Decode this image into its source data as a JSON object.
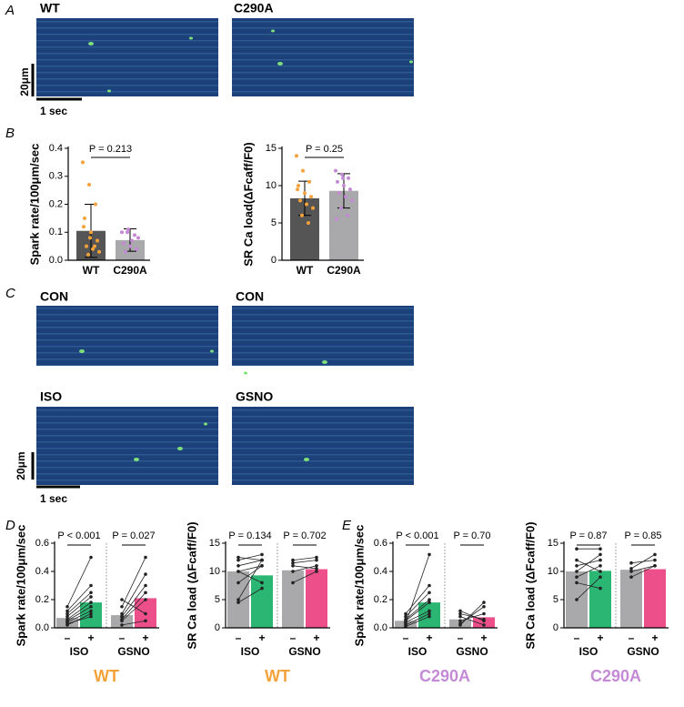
{
  "panel_letters": [
    "A",
    "B",
    "C",
    "D",
    "E"
  ],
  "images": [
    "WT",
    "C290A",
    "CON",
    "CON",
    "ISO",
    "GSNO"
  ],
  "scale_bars": [
    "20μm",
    "1 sec"
  ],
  "chart_data": [
    {
      "type": "bar",
      "ylabel": "Spark rate/100μm/sec",
      "categories": [
        "WT",
        "C290A"
      ],
      "values": [
        0.105,
        0.072
      ],
      "errors": [
        0.095,
        0.04
      ],
      "colors": [
        "#555555",
        "#a9a9ab"
      ],
      "point_colors": [
        "#f5a23a",
        "#c58ad6"
      ],
      "points": [
        [
          0.35,
          0.27,
          0.2,
          0.15,
          0.1,
          0.07,
          0.05,
          0.04,
          0.03,
          0.02,
          0.05,
          0.12,
          0.08
        ],
        [
          0.1,
          0.11,
          0.09,
          0.06,
          0.05,
          0.04,
          0.03,
          0.07,
          0.08,
          0.1
        ]
      ],
      "ylim": [
        0,
        0.4
      ],
      "yticks": [
        {
          "value": 0,
          "label": "0.0"
        },
        0.1,
        0.2,
        0.3,
        0.4
      ],
      "annotation": "P = 0.213"
    },
    {
      "type": "bar",
      "ylabel": "SR Ca load(ΔFcaff/F0)",
      "categories": [
        "WT",
        "C290A"
      ],
      "values": [
        8.3,
        9.3
      ],
      "errors": [
        2.3,
        2.3
      ],
      "colors": [
        "#555555",
        "#a9a9ab"
      ],
      "point_colors": [
        "#f5a23a",
        "#c58ad6"
      ],
      "points": [
        [
          14,
          12,
          10.5,
          10,
          9,
          8.5,
          8,
          7.5,
          7,
          6,
          5,
          9.5
        ],
        [
          12,
          11.5,
          11,
          10.5,
          10,
          9.5,
          9,
          8.5,
          8,
          7,
          6,
          5.5,
          11
        ]
      ],
      "ylim": [
        0,
        15
      ],
      "yticks": [
        0,
        5,
        10,
        15
      ],
      "annotation": "P = 0.25"
    },
    {
      "type": "paired_bar",
      "ylabel": "Spark rate/100μm/sec",
      "groups": [
        "ISO",
        "GSNO"
      ],
      "conditions": [
        "–",
        "+"
      ],
      "values": [
        [
          0.07,
          0.18
        ],
        [
          0.09,
          0.21
        ]
      ],
      "colors": [
        [
          "#a9a9ab",
          "#2bb673"
        ],
        [
          "#a9a9ab",
          "#ec4f8a"
        ]
      ],
      "pairs": [
        [
          [
            0.02,
            0.1
          ],
          [
            0.05,
            0.15
          ],
          [
            0.08,
            0.22
          ],
          [
            0.12,
            0.3
          ],
          [
            0.04,
            0.12
          ],
          [
            0.15,
            0.5
          ],
          [
            0.1,
            0.25
          ],
          [
            0.06,
            0.18
          ],
          [
            0.03,
            0.08
          ]
        ],
        [
          [
            0.05,
            0.2
          ],
          [
            0.1,
            0.38
          ],
          [
            0.2,
            0.1
          ],
          [
            0.08,
            0.3
          ],
          [
            0.02,
            0.05
          ],
          [
            0.15,
            0.5
          ],
          [
            0.06,
            0.25
          ]
        ]
      ],
      "p_values": [
        "P < 0.001",
        "P = 0.027"
      ],
      "genotype": "WT",
      "genotype_color": "#f5a23a",
      "ylim": [
        0,
        0.6
      ],
      "yticks": [
        {
          "value": 0,
          "label": "0.0"
        },
        0.2,
        0.4,
        0.6
      ]
    },
    {
      "type": "paired_bar",
      "ylabel": "SR Ca load (ΔFcaff/F0)",
      "groups": [
        "ISO",
        "GSNO"
      ],
      "conditions": [
        "–",
        "+"
      ],
      "values": [
        [
          10,
          9.3
        ],
        [
          10.2,
          10.4
        ]
      ],
      "colors": [
        [
          "#a9a9ab",
          "#2bb673"
        ],
        [
          "#a9a9ab",
          "#ec4f8a"
        ]
      ],
      "pairs": [
        [
          [
            10,
            11
          ],
          [
            12,
            13
          ],
          [
            8,
            11
          ],
          [
            11,
            12
          ],
          [
            5,
            12
          ],
          [
            4.5,
            7
          ],
          [
            12.5,
            12
          ],
          [
            10,
            8
          ]
        ],
        [
          [
            10,
            11
          ],
          [
            12,
            12.5
          ],
          [
            8,
            10
          ],
          [
            11,
            10.5
          ],
          [
            11.5,
            12
          ]
        ]
      ],
      "p_values": [
        "P = 0.134",
        "P = 0.702"
      ],
      "genotype": "WT",
      "genotype_color": "#f5a23a",
      "ylim": [
        0,
        15
      ],
      "yticks": [
        0,
        5,
        10,
        15
      ]
    },
    {
      "type": "paired_bar",
      "ylabel": "Spark rate/100μm/sec",
      "groups": [
        "ISO",
        "GSNO"
      ],
      "conditions": [
        "–",
        "+"
      ],
      "values": [
        [
          0.05,
          0.18
        ],
        [
          0.06,
          0.075
        ]
      ],
      "colors": [
        [
          "#a9a9ab",
          "#2bb673"
        ],
        [
          "#a9a9ab",
          "#ec4f8a"
        ]
      ],
      "pairs": [
        [
          [
            0.02,
            0.1
          ],
          [
            0.05,
            0.18
          ],
          [
            0.03,
            0.52
          ],
          [
            0.08,
            0.25
          ],
          [
            0.04,
            0.12
          ],
          [
            0.1,
            0.3
          ],
          [
            0.06,
            0.2
          ],
          [
            0.01,
            0.08
          ]
        ],
        [
          [
            0.05,
            0.1
          ],
          [
            0.02,
            0.18
          ],
          [
            0.12,
            0.05
          ],
          [
            0.08,
            0.02
          ],
          [
            0.03,
            0.15
          ],
          [
            0.1,
            0.06
          ]
        ]
      ],
      "p_values": [
        "P < 0.001",
        "P = 0.70"
      ],
      "genotype": "C290A",
      "genotype_color": "#c58ad6",
      "ylim": [
        0,
        0.6
      ],
      "yticks": [
        {
          "value": 0,
          "label": "0.0"
        },
        0.2,
        0.4,
        0.6
      ]
    },
    {
      "type": "paired_bar",
      "ylabel": "SR Ca load (ΔFcaff/F0)",
      "groups": [
        "ISO",
        "GSNO"
      ],
      "conditions": [
        "–",
        "+"
      ],
      "values": [
        [
          10,
          10.1
        ],
        [
          10.3,
          10.4
        ]
      ],
      "colors": [
        [
          "#a9a9ab",
          "#2bb673"
        ],
        [
          "#a9a9ab",
          "#ec4f8a"
        ]
      ],
      "pairs": [
        [
          [
            14,
            14
          ],
          [
            12,
            10
          ],
          [
            9,
            11
          ],
          [
            5,
            9
          ],
          [
            10,
            13
          ],
          [
            8,
            7
          ],
          [
            11,
            12
          ]
        ],
        [
          [
            10,
            11
          ],
          [
            11.5,
            12
          ],
          [
            9,
            11
          ],
          [
            10.5,
            13
          ]
        ]
      ],
      "p_values": [
        "P = 0.87",
        "P = 0.85"
      ],
      "genotype": "C290A",
      "genotype_color": "#c58ad6",
      "ylim": [
        0,
        15
      ],
      "yticks": [
        0,
        5,
        10,
        15
      ]
    }
  ]
}
